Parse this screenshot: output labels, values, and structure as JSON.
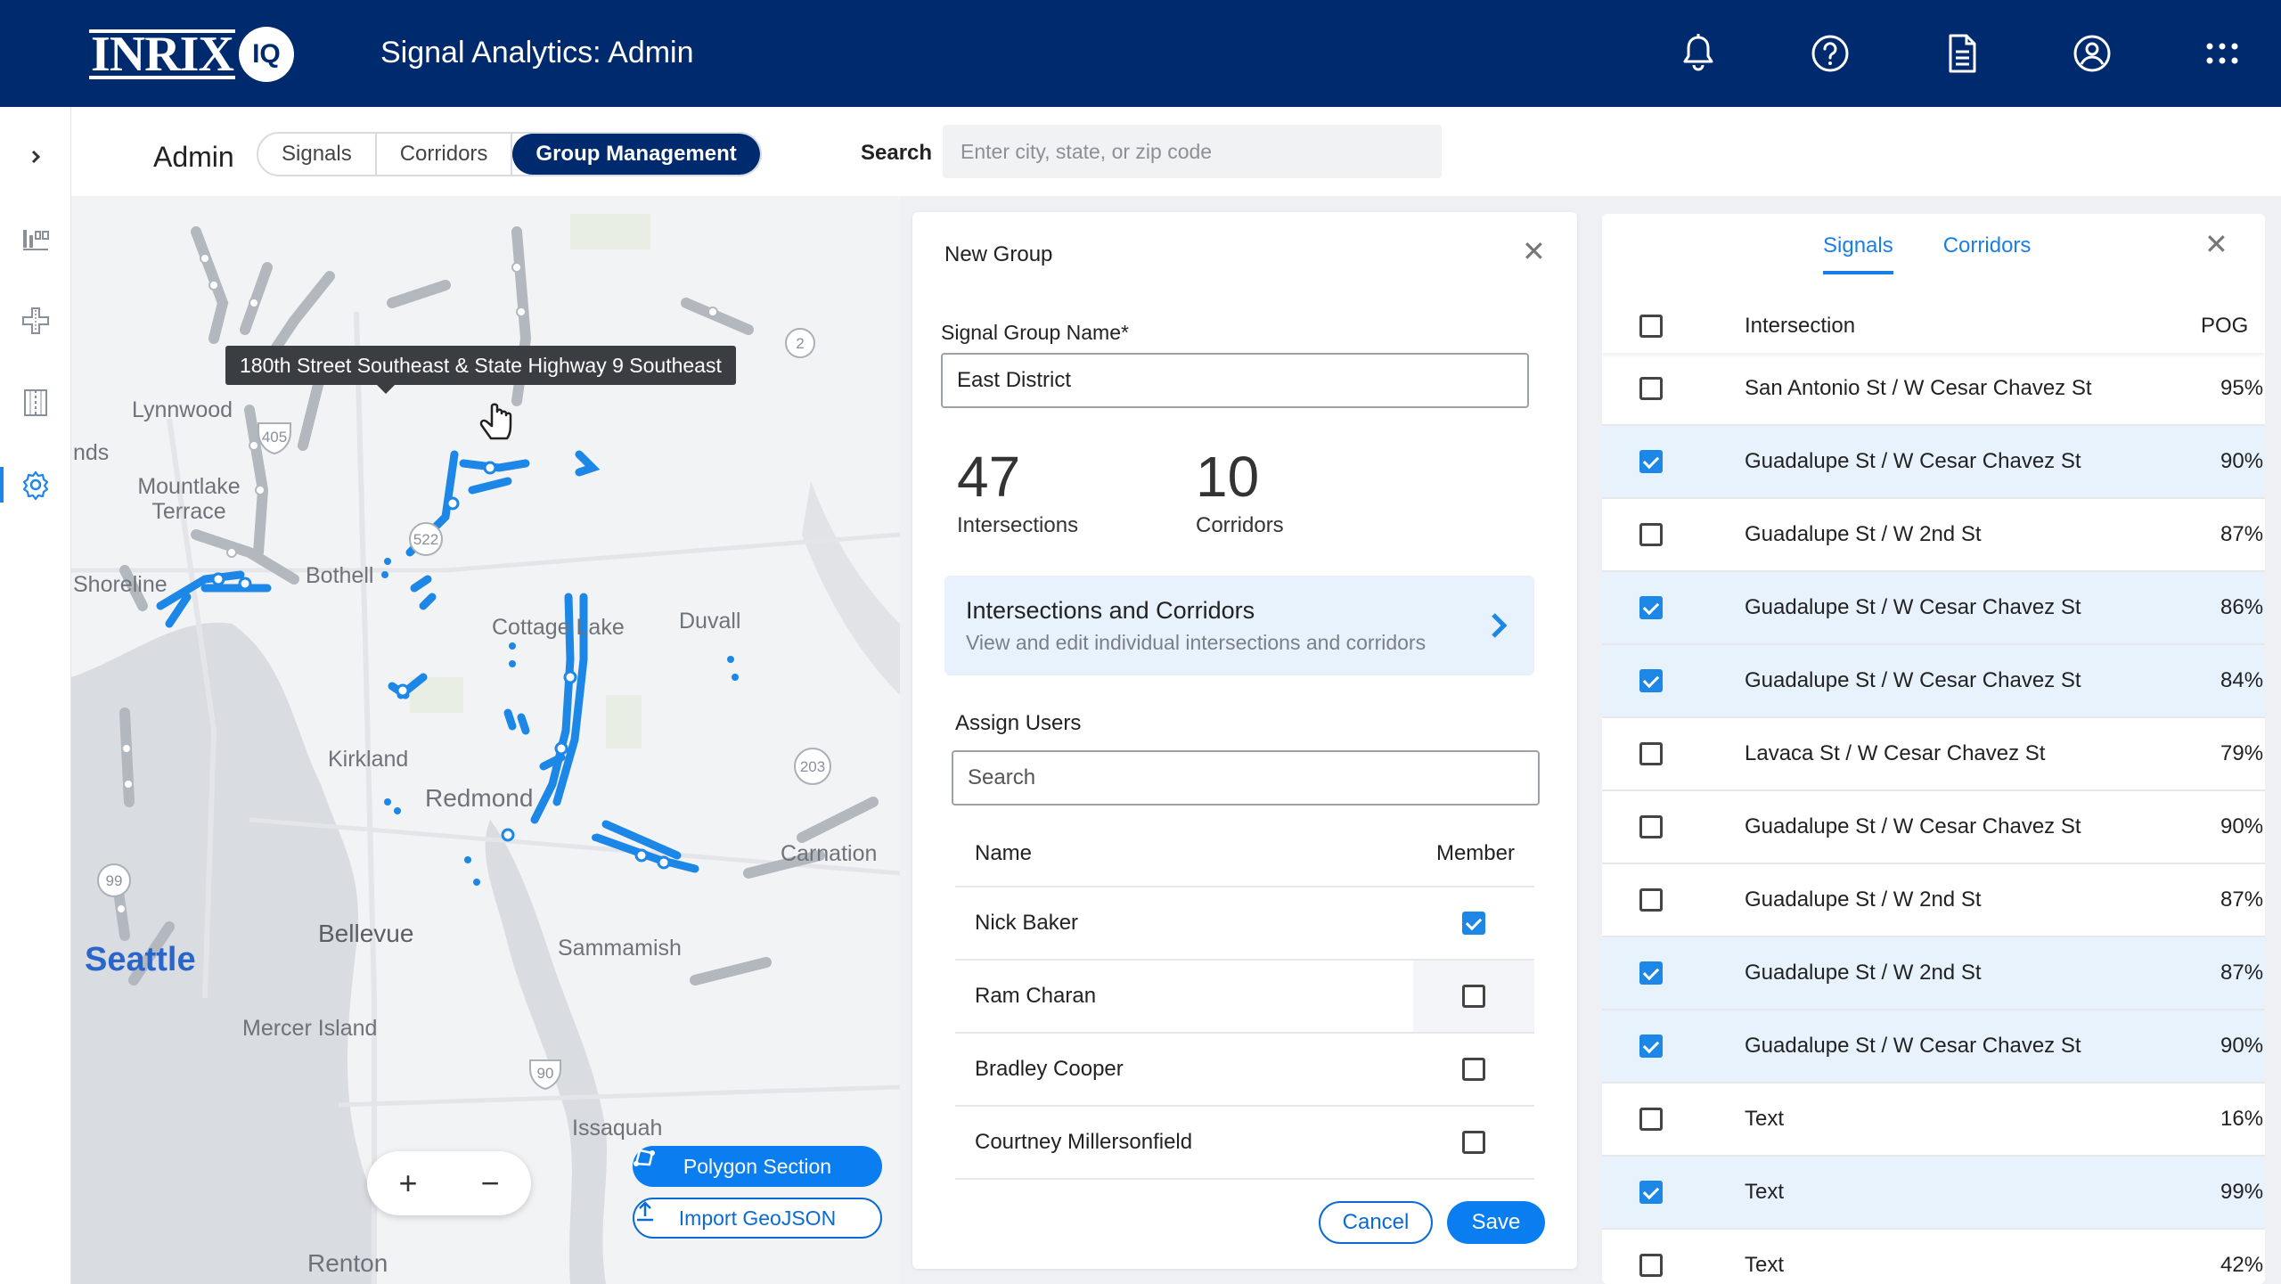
{
  "header": {
    "logo_text": "INRIX",
    "logo_badge": "IQ",
    "title": "Signal Analytics: Admin",
    "icons": [
      "bell-icon",
      "help-icon",
      "document-icon",
      "account-icon",
      "apps-grid-icon"
    ]
  },
  "sidebar": {
    "expand_icon": "chevron-right-icon",
    "items": [
      "signals-icon",
      "intersection-icon",
      "corridor-icon",
      "settings-icon"
    ]
  },
  "subbar": {
    "admin_label": "Admin",
    "tabs": [
      {
        "label": "Signals",
        "active": false
      },
      {
        "label": "Corridors",
        "active": false
      },
      {
        "label": "Group Management",
        "active": true
      }
    ],
    "search_label": "Search",
    "search_placeholder": "Enter city, state, or zip code"
  },
  "map": {
    "tooltip": "180th Street Southeast & State Highway 9 Southeast",
    "labels": [
      "Lynnwood",
      "nds",
      "Mountlake Terrace",
      "Shoreline",
      "Bothell",
      "Cottage Lake",
      "Duvall",
      "Kirkland",
      "Redmond",
      "Carnation",
      "Bellevue",
      "Seattle",
      "Sammamish",
      "Mercer Island",
      "Issaquah",
      "Renton"
    ],
    "road_shields": [
      "405",
      "522",
      "2",
      "203",
      "99",
      "90"
    ],
    "zoom_in": "+",
    "zoom_out": "−",
    "polygon_button": "Polygon Section",
    "import_button": "Import GeoJSON"
  },
  "new_group": {
    "title": "New Group",
    "name_label": "Signal Group Name*",
    "name_value": "East District",
    "stats": [
      {
        "value": "47",
        "label": "Intersections"
      },
      {
        "value": "10",
        "label": "Corridors"
      }
    ],
    "card_title": "Intersections and Corridors",
    "card_subtitle": "View and edit individual intersections and corridors",
    "assign_label": "Assign Users",
    "user_search_placeholder": "Search",
    "col_name": "Name",
    "col_member": "Member",
    "users": [
      {
        "name": "Nick Baker",
        "member": true
      },
      {
        "name": "Ram Charan",
        "member": false
      },
      {
        "name": "Bradley Cooper",
        "member": false
      },
      {
        "name": "Courtney Millersonfield",
        "member": false
      }
    ],
    "cancel": "Cancel",
    "save": "Save"
  },
  "signals_panel": {
    "tabs": [
      {
        "label": "Signals",
        "active": true
      },
      {
        "label": "Corridors",
        "active": false
      }
    ],
    "col_intersection": "Intersection",
    "col_pog": "POG",
    "rows": [
      {
        "name": "San Antonio St / W Cesar Chavez St",
        "pog": "95%",
        "checked": false
      },
      {
        "name": "Guadalupe St / W Cesar Chavez St",
        "pog": "90%",
        "checked": true
      },
      {
        "name": "Guadalupe St / W 2nd St",
        "pog": "87%",
        "checked": false
      },
      {
        "name": "Guadalupe St / W Cesar Chavez St",
        "pog": "86%",
        "checked": true
      },
      {
        "name": "Guadalupe St / W Cesar Chavez St",
        "pog": "84%",
        "checked": true
      },
      {
        "name": "Lavaca St / W Cesar Chavez St",
        "pog": "79%",
        "checked": false
      },
      {
        "name": "Guadalupe St / W Cesar Chavez St",
        "pog": "90%",
        "checked": false
      },
      {
        "name": "Guadalupe St / W 2nd St",
        "pog": "87%",
        "checked": false
      },
      {
        "name": "Guadalupe St / W 2nd St",
        "pog": "87%",
        "checked": true
      },
      {
        "name": "Guadalupe St / W Cesar Chavez St",
        "pog": "90%",
        "checked": true
      },
      {
        "name": "Text",
        "pog": "16%",
        "checked": false
      },
      {
        "name": "Text",
        "pog": "99%",
        "checked": true
      },
      {
        "name": "Text",
        "pog": "42%",
        "checked": false
      }
    ]
  },
  "colors": {
    "navy": "#002a6e",
    "accent": "#0a7ef0",
    "route": "#1c87e6",
    "selected_row": "#e7f2fc"
  }
}
